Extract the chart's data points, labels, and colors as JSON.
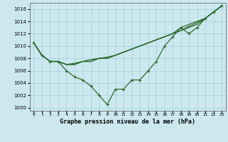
{
  "title": "Graphe pression niveau de la mer (hPa)",
  "background_color": "#cce8ee",
  "grid_color": "#9fcfda",
  "line_color": "#2d6a2d",
  "xlim": [
    -0.5,
    23.5
  ],
  "ylim": [
    999.5,
    1017.0
  ],
  "yticks": [
    1000,
    1002,
    1004,
    1006,
    1008,
    1010,
    1012,
    1014,
    1016
  ],
  "x_labels": [
    "0",
    "1",
    "2",
    "3",
    "4",
    "5",
    "6",
    "7",
    "8",
    "9",
    "10",
    "11",
    "12",
    "13",
    "14",
    "15",
    "16",
    "17",
    "18",
    "19",
    "20",
    "21",
    "22",
    "23"
  ],
  "series": [
    [
      1010.5,
      1008.5,
      1007.5,
      1007.5,
      1006.0,
      1005.0,
      1004.5,
      1003.5,
      1002.0,
      1000.5,
      1003.0,
      1003.0,
      1004.5,
      1004.5,
      1006.0,
      1007.5,
      1010.0,
      1011.5,
      1013.0,
      1012.0,
      1013.0,
      1014.5,
      1015.5,
      1016.5
    ],
    [
      1010.5,
      1008.5,
      1007.5,
      1007.5,
      1007.0,
      1007.0,
      1007.5,
      1007.5,
      1008.0,
      1008.0,
      1008.5,
      1009.0,
      1009.5,
      1010.0,
      1010.5,
      1011.0,
      1011.5,
      1012.0,
      1012.5,
      1013.0,
      1013.5,
      1014.5,
      1015.5,
      1016.5
    ],
    [
      1010.5,
      1008.5,
      1007.5,
      1007.5,
      1007.0,
      1007.2,
      1007.5,
      1007.8,
      1008.0,
      1008.2,
      1008.5,
      1009.0,
      1009.5,
      1010.0,
      1010.5,
      1011.0,
      1011.5,
      1012.0,
      1012.5,
      1013.2,
      1013.8,
      1014.5,
      1015.5,
      1016.5
    ],
    [
      1010.5,
      1008.5,
      1007.5,
      1007.5,
      1007.0,
      1007.0,
      1007.5,
      1007.5,
      1008.0,
      1008.0,
      1008.5,
      1009.0,
      1009.5,
      1010.0,
      1010.5,
      1011.0,
      1011.5,
      1012.0,
      1013.0,
      1013.5,
      1014.0,
      1014.5,
      1015.5,
      1016.5
    ]
  ]
}
